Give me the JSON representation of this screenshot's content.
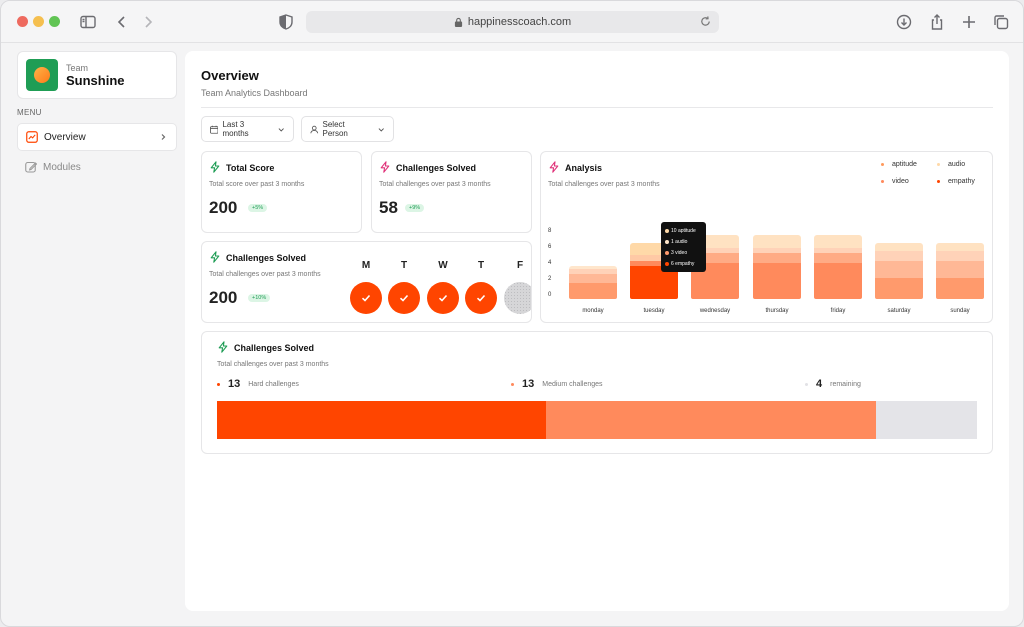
{
  "browser": {
    "url": "happinesscoach.com"
  },
  "sidebar": {
    "team_label": "Team",
    "team_name": "Sunshine",
    "menu_label": "MENU",
    "items": [
      {
        "label": "Overview",
        "active": true
      },
      {
        "label": "Modules",
        "active": false
      }
    ]
  },
  "header": {
    "title": "Overview",
    "subtitle": "Team Analytics Dashboard"
  },
  "filters": {
    "range": "Last 3 months",
    "person": "Select Person"
  },
  "cards": {
    "total_score": {
      "title": "Total Score",
      "subtitle": "Total score over past 3 months",
      "value": "200",
      "badge": "+5%"
    },
    "challenges_solved": {
      "title": "Challenges Solved",
      "subtitle": "Total challenges over past 3 months",
      "value": "58",
      "badge": "+9%"
    },
    "streak": {
      "title": "Challenges Solved",
      "subtitle": "Total challenges over past 3 months",
      "value": "200",
      "badge": "+10%",
      "days": [
        {
          "letter": "M",
          "done": true
        },
        {
          "letter": "T",
          "done": true
        },
        {
          "letter": "W",
          "done": true
        },
        {
          "letter": "T",
          "done": true
        },
        {
          "letter": "F",
          "done": false
        }
      ]
    },
    "analysis": {
      "title": "Analysis",
      "subtitle": "Total challenges over past 3 months",
      "legend": [
        {
          "name": "aptitude",
          "color": "#ff9a5c"
        },
        {
          "name": "audio",
          "color": "#ffd9a8"
        },
        {
          "name": "video",
          "color": "#ff8a5c"
        },
        {
          "name": "empathy",
          "color": "#ff4500"
        }
      ],
      "tooltip": [
        {
          "text": "10 aptitude",
          "color": "#ffd9a8"
        },
        {
          "text": "1 audio",
          "color": "#ffe6c9"
        },
        {
          "text": "3 video",
          "color": "#ff9a6c"
        },
        {
          "text": "6 empathy",
          "color": "#ff4500"
        }
      ]
    },
    "progress": {
      "title": "Challenges Solved",
      "subtitle": "Total challenges over past 3 months",
      "stats": [
        {
          "value": "13",
          "label": "Hard challenges",
          "color": "#ff4500"
        },
        {
          "value": "13",
          "label": "Medium challenges",
          "color": "#ff8a5c"
        },
        {
          "value": "4",
          "label": "remaining",
          "color": "#e2e2e6"
        }
      ],
      "segments": [
        {
          "value": 13,
          "color": "#ff4500"
        },
        {
          "value": 13,
          "color": "#ff8a5c"
        },
        {
          "value": 4,
          "color": "#e4e4e8"
        }
      ]
    }
  },
  "chart_data": {
    "type": "bar",
    "stacked": true,
    "title": "Analysis",
    "categories": [
      "monday",
      "tuesday",
      "wednesday",
      "thursday",
      "friday",
      "saturday",
      "sunday"
    ],
    "yticks": [
      "8",
      "6",
      "4",
      "2",
      "0"
    ],
    "ylim": [
      0,
      8
    ],
    "series": [
      {
        "name": "empathy",
        "color_by_cat": [
          "#ff9a6c",
          "#ff4500",
          "#ff8a5c",
          "#ff8a5c",
          "#ff8a5c",
          "#ff9a6c",
          "#ff9a6c"
        ],
        "values": [
          2,
          4,
          4.4,
          4.4,
          4.4,
          2.6,
          2.6
        ]
      },
      {
        "name": "video",
        "color_by_cat": [
          "#ffb896",
          "#ff8a5c",
          "#ffab85",
          "#ffab85",
          "#ffab85",
          "#ffb896",
          "#ffb896"
        ],
        "values": [
          1,
          0.6,
          1.2,
          1.2,
          1.2,
          2.0,
          2.0
        ]
      },
      {
        "name": "audio",
        "color_by_cat": [
          "#ffd2b8",
          "#ffc9a5",
          "#ffd2b8",
          "#ffd2b8",
          "#ffd2b8",
          "#ffd2b8",
          "#ffd2b8"
        ],
        "values": [
          0.6,
          0.8,
          0.6,
          0.6,
          0.6,
          1.2,
          1.2
        ]
      },
      {
        "name": "aptitude",
        "color_by_cat": [
          "#ffe6cc",
          "#ffd9a8",
          "#ffe2c2",
          "#ffe2c2",
          "#ffe2c2",
          "#ffe2c2",
          "#ffe2c2"
        ],
        "values": [
          0.4,
          1.4,
          1.6,
          1.6,
          1.6,
          1.0,
          1.0
        ]
      }
    ]
  }
}
